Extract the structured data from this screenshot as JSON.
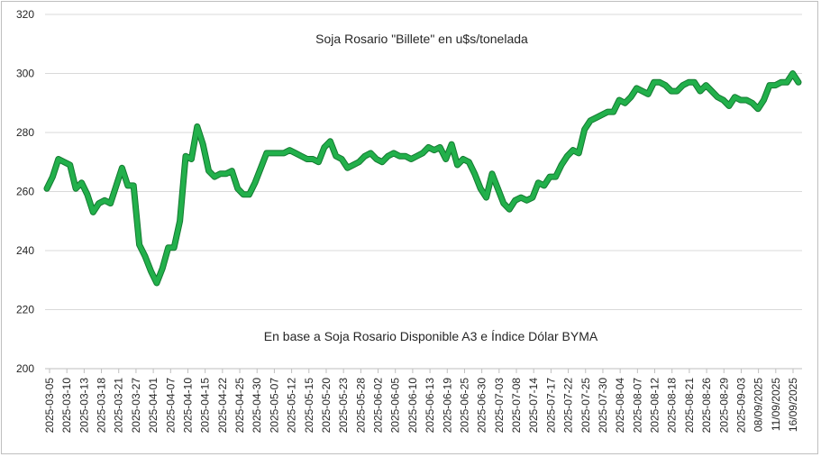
{
  "chart_data": {
    "type": "line",
    "title": "Soja Rosario \"Billete\" en u$s/tonelada",
    "subtitle": "En base a Soja Rosario Disponible A3 e Índice Dólar BYMA",
    "xlabel": "",
    "ylabel": "",
    "ylim": [
      200,
      320
    ],
    "yticks": [
      200,
      220,
      240,
      260,
      280,
      300,
      320
    ],
    "grid": "horizontal",
    "line_color": "#22b04b",
    "xtick_labels": [
      "2025-03-05",
      "2025-03-10",
      "2025-03-13",
      "2025-03-18",
      "2025-03-21",
      "2025-03-27",
      "2025-04-01",
      "2025-04-07",
      "2025-04-10",
      "2025-04-15",
      "2025-04-22",
      "2025-04-25",
      "2025-04-30",
      "2025-05-07",
      "2025-05-12",
      "2025-05-15",
      "2025-05-20",
      "2025-05-23",
      "2025-05-28",
      "2025-06-02",
      "2025-06-05",
      "2025-06-10",
      "2025-06-13",
      "2025-06-19",
      "2025-06-25",
      "2025-06-30",
      "2025-07-03",
      "2025-07-08",
      "2025-07-14",
      "2025-07-17",
      "2025-07-22",
      "2025-07-25",
      "2025-07-30",
      "2025-08-04",
      "2025-08-07",
      "2025-08-12",
      "2025-08-18",
      "2025-08-21",
      "2025-08-26",
      "2025-08-29",
      "2025-09-03",
      "08/09/2025",
      "11/09/2025",
      "16/09/2025"
    ],
    "series": [
      {
        "values": [
          261,
          265,
          271,
          270,
          269,
          261,
          263,
          259,
          253,
          256,
          257,
          256,
          262,
          268,
          262,
          262,
          242,
          238,
          233,
          229,
          234,
          241,
          241,
          250,
          272,
          271,
          282,
          276,
          267,
          265,
          266,
          266,
          267,
          261,
          259,
          259,
          263,
          268,
          273,
          273,
          273,
          273,
          274,
          273,
          272,
          271,
          271,
          270,
          275,
          277,
          272,
          271,
          268,
          269,
          270,
          272,
          273,
          271,
          270,
          272,
          273,
          272,
          272,
          271,
          272,
          273,
          275,
          274,
          275,
          271,
          276,
          269,
          271,
          270,
          266,
          261,
          258,
          266,
          261,
          256,
          254,
          257,
          258,
          257,
          258,
          263,
          262,
          265,
          265,
          269,
          272,
          274,
          273,
          281,
          284,
          285,
          286,
          287,
          287,
          291,
          290,
          292,
          295,
          294,
          293,
          297,
          297,
          296,
          294,
          294,
          296,
          297,
          297,
          294,
          296,
          294,
          292,
          291,
          289,
          292,
          291,
          291,
          290,
          288,
          291,
          296,
          296,
          297,
          297,
          300,
          297
        ]
      }
    ]
  }
}
